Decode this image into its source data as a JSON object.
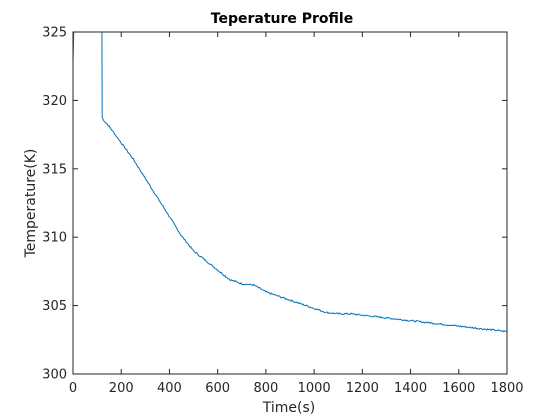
{
  "chart_data": {
    "type": "line",
    "title": "Teperature Profile",
    "xlabel": "Time(s)",
    "ylabel": "Temperature(K)",
    "xlim": [
      0,
      1800
    ],
    "ylim": [
      300,
      325
    ],
    "xticks": [
      0,
      200,
      400,
      600,
      800,
      1000,
      1200,
      1400,
      1600,
      1800
    ],
    "yticks": [
      300,
      305,
      310,
      315,
      320,
      325
    ],
    "grid": false,
    "box": true,
    "series": [
      {
        "color": "#0072BD",
        "x": [
          0,
          3,
          6,
          10,
          118,
          120,
          121,
          125,
          150,
          200,
          250,
          300,
          350,
          400,
          450,
          500,
          550,
          600,
          650,
          700,
          750,
          800,
          850,
          900,
          950,
          1000,
          1050,
          1100,
          1150,
          1200,
          1250,
          1300,
          1350,
          1400,
          1450,
          1500,
          1550,
          1600,
          1650,
          1700,
          1750,
          1800
        ],
        "y": [
          322.8,
          325.0,
          325.0,
          325.0,
          325.0,
          325.0,
          318.8,
          318.6,
          318.1,
          316.9,
          315.7,
          314.3,
          312.9,
          311.5,
          310.1,
          309.0,
          308.3,
          307.6,
          306.9,
          306.6,
          306.5,
          306.0,
          305.7,
          305.4,
          305.1,
          304.8,
          304.5,
          304.4,
          304.4,
          304.3,
          304.2,
          304.1,
          304.0,
          303.9,
          303.8,
          303.7,
          303.6,
          303.5,
          303.4,
          303.3,
          303.2,
          303.1
        ]
      }
    ]
  }
}
